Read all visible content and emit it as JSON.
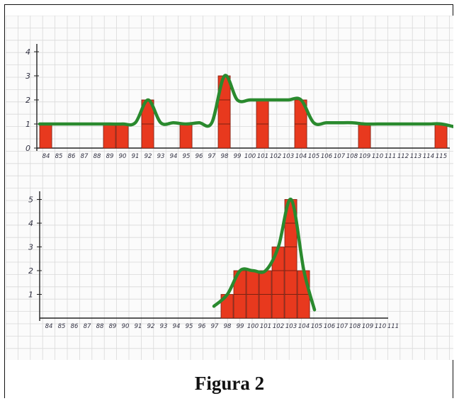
{
  "caption": "Figura 2",
  "colors": {
    "bar_fill": "#e8391e",
    "bar_stroke": "#7a1f10",
    "curve": "#2a8a2e",
    "grid": "#d9d9d9",
    "axis": "#222222"
  },
  "chart_data": [
    {
      "type": "bar",
      "title": "",
      "xlabel": "",
      "ylabel": "",
      "ylim": [
        0,
        4
      ],
      "yticks": [
        0,
        1,
        2,
        3,
        4
      ],
      "categories": [
        "84",
        "85",
        "86",
        "87",
        "88",
        "89",
        "90",
        "91",
        "92",
        "93",
        "94",
        "95",
        "96",
        "97",
        "98",
        "99",
        "100",
        "101",
        "102",
        "103",
        "104",
        "105",
        "106",
        "107",
        "108",
        "109",
        "110",
        "111",
        "112",
        "113",
        "114",
        "115"
      ],
      "values": [
        1,
        0,
        0,
        0,
        0,
        1,
        1,
        0,
        2,
        0,
        0,
        1,
        0,
        0,
        3,
        0,
        0,
        2,
        0,
        0,
        2,
        0,
        0,
        0,
        0,
        1,
        0,
        0,
        0,
        0,
        0,
        1
      ],
      "curve": "smoothed envelope over the bars",
      "grid": true
    },
    {
      "type": "bar",
      "title": "",
      "xlabel": "",
      "ylabel": "",
      "ylim": [
        0,
        5
      ],
      "yticks": [
        1,
        2,
        3,
        4,
        5
      ],
      "categories": [
        "84",
        "85",
        "86",
        "87",
        "88",
        "89",
        "90",
        "91",
        "92",
        "93",
        "94",
        "95",
        "96",
        "97",
        "98",
        "99",
        "100",
        "101",
        "102",
        "103",
        "104",
        "105",
        "106",
        "107",
        "108",
        "109",
        "110",
        "111"
      ],
      "values": [
        0,
        0,
        0,
        0,
        0,
        0,
        0,
        0,
        0,
        0,
        0,
        0,
        0,
        0,
        1,
        2,
        2,
        2,
        3,
        5,
        2,
        0,
        0,
        0,
        0,
        0,
        0,
        0
      ],
      "curve": "smoothed envelope over the bars",
      "grid": true
    }
  ]
}
